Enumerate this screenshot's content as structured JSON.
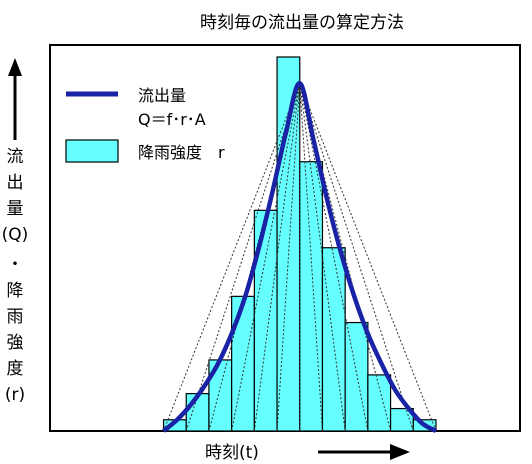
{
  "chart_data": {
    "type": "bar",
    "title": "時刻毎の流出量の算定方法",
    "xlabel": "時刻(t)",
    "ylabel_chars": [
      "流",
      "出",
      "量",
      "(Q)",
      "・",
      "降",
      "雨",
      "強",
      "度",
      "(r)"
    ],
    "legend": {
      "line_label": "流出量",
      "line_formula": "Q＝f･r･A",
      "bar_label": "降雨強度　r",
      "placement": "top-left"
    },
    "series": [
      {
        "name": "降雨強度　r",
        "kind": "bar",
        "values": [
          0.03,
          0.1,
          0.19,
          0.36,
          0.59,
          1.0,
          0.72,
          0.49,
          0.29,
          0.15,
          0.06,
          0.03
        ]
      },
      {
        "name": "流出量",
        "kind": "line",
        "x": [
          0,
          0.6,
          1.2,
          1.8,
          2.4,
          3.0,
          3.6,
          4.2,
          4.8,
          5.4,
          6.0,
          6.6,
          7.2,
          7.8,
          8.4,
          9.0,
          9.6,
          10.2,
          10.8,
          11.4,
          12.0
        ],
        "values": [
          0.0,
          0.03,
          0.07,
          0.12,
          0.18,
          0.26,
          0.36,
          0.49,
          0.64,
          0.8,
          0.93,
          0.78,
          0.62,
          0.48,
          0.36,
          0.26,
          0.18,
          0.11,
          0.06,
          0.02,
          0.0
        ]
      }
    ],
    "xlim": [
      -5.0,
      15.7
    ],
    "ylim": [
      0,
      1.0
    ],
    "grid": false
  },
  "colors": {
    "bar_fill": "#66ffff",
    "bar_stroke": "#000000",
    "line": "#1a22a6",
    "dotted": "#333333",
    "axis": "#000000"
  }
}
